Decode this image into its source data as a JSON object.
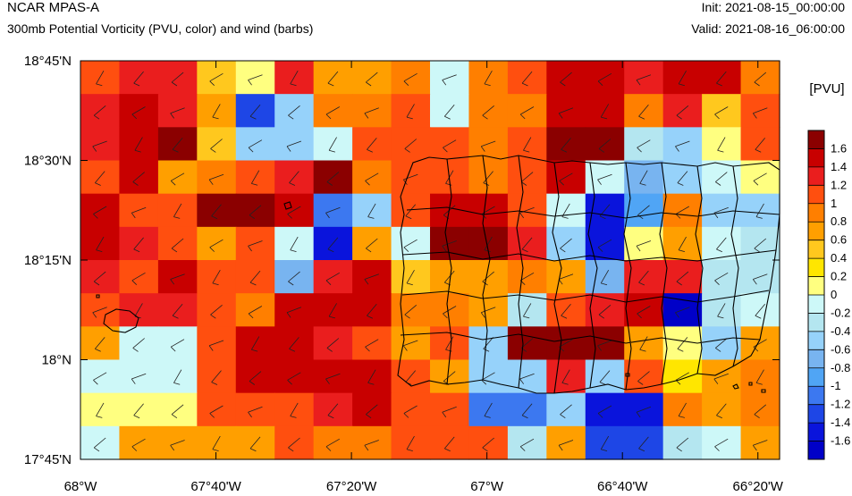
{
  "header": {
    "title": "NCAR MPAS-A",
    "subtitle": "300mb Potential Vorticity (PVU, color) and wind (barbs)",
    "init": "Init: 2021-08-15_00:00:00",
    "valid": "Valid: 2021-08-16_06:00:00"
  },
  "axes": {
    "lat_labels": [
      "18°45'N",
      "18°30'N",
      "18°15'N",
      "18°N",
      "17°45'N"
    ],
    "lon_labels": [
      "68°W",
      "67°40'W",
      "67°20'W",
      "67°W",
      "66°40'W",
      "66°20'W"
    ],
    "lon_range": [
      -68.0,
      -66.28
    ],
    "lat_range": [
      17.75,
      18.75
    ]
  },
  "colorbar": {
    "unit": "[PVU]",
    "labels": [
      "1.6",
      "1.4",
      "1.2",
      "1",
      "0.8",
      "0.6",
      "0.4",
      "0.2",
      "0",
      "-0.2",
      "-0.4",
      "-0.6",
      "-0.8",
      "-1",
      "-1.2",
      "-1.4",
      "-1.6"
    ],
    "colors": [
      "#8b0000",
      "#c80000",
      "#ea1e1e",
      "#ff4f0f",
      "#ff7f00",
      "#ff9f00",
      "#ffc81e",
      "#ffe600",
      "#ffff80",
      "#cdf8f8",
      "#b4e6f0",
      "#96d2fa",
      "#78b4f0",
      "#50a5f5",
      "#3c78f0",
      "#1e46e6",
      "#0a14dc",
      "#0000c8"
    ]
  },
  "chart_data": {
    "type": "heatmap",
    "variable": "300mb Potential Vorticity (PVU)",
    "color_levels": [
      1.6,
      1.4,
      1.2,
      1,
      0.8,
      0.6,
      0.4,
      0.2,
      0,
      -0.2,
      -0.4,
      -0.6,
      -0.8,
      -1,
      -1.2,
      -1.4,
      -1.6
    ],
    "grid": [
      [
        3,
        2,
        2,
        6,
        8,
        2,
        5,
        5,
        4,
        9,
        4,
        3,
        1,
        1,
        2,
        1,
        1,
        4
      ],
      [
        2,
        1,
        2,
        5,
        15,
        11,
        4,
        4,
        3,
        9,
        4,
        4,
        1,
        1,
        4,
        2,
        6,
        3
      ],
      [
        2,
        1,
        0,
        6,
        11,
        11,
        9,
        3,
        3,
        3,
        4,
        3,
        0,
        0,
        10,
        11,
        8,
        3
      ],
      [
        3,
        1,
        5,
        4,
        3,
        2,
        0,
        4,
        3,
        3,
        4,
        3,
        1,
        9,
        12,
        11,
        9,
        8
      ],
      [
        1,
        3,
        3,
        0,
        0,
        1,
        14,
        11,
        3,
        1,
        1,
        3,
        9,
        16,
        13,
        4,
        11,
        11
      ],
      [
        1,
        2,
        3,
        5,
        3,
        9,
        16,
        5,
        9,
        0,
        0,
        2,
        11,
        16,
        8,
        5,
        9,
        10
      ],
      [
        2,
        3,
        1,
        3,
        3,
        12,
        2,
        1,
        6,
        5,
        5,
        4,
        5,
        12,
        2,
        2,
        10,
        10
      ],
      [
        3,
        2,
        2,
        3,
        4,
        1,
        1,
        1,
        4,
        4,
        5,
        10,
        3,
        2,
        1,
        17,
        10,
        9
      ],
      [
        5,
        9,
        9,
        3,
        1,
        1,
        2,
        3,
        5,
        3,
        11,
        0,
        0,
        0,
        5,
        8,
        11,
        5
      ],
      [
        9,
        9,
        9,
        3,
        1,
        1,
        1,
        1,
        3,
        5,
        11,
        11,
        2,
        11,
        3,
        7,
        5,
        4
      ],
      [
        8,
        8,
        8,
        3,
        3,
        3,
        2,
        1,
        3,
        3,
        14,
        14,
        11,
        16,
        16,
        4,
        5,
        4
      ],
      [
        9,
        5,
        5,
        5,
        5,
        3,
        4,
        4,
        3,
        3,
        3,
        10,
        5,
        15,
        15,
        10,
        9,
        5
      ]
    ],
    "barbs": "wind barbs at each grid cell (mostly westerly/northwesterly, roughly 5-10 kt)"
  }
}
